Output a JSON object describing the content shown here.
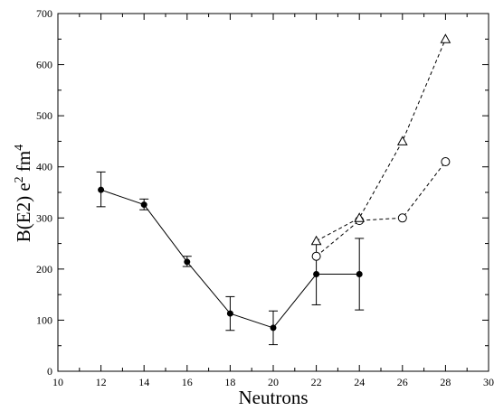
{
  "chart_data": {
    "type": "line",
    "xlabel": "Neutrons",
    "ylabel": {
      "main": "B(E2) e",
      "sup1": "2",
      "mid": "fm",
      "sup2": "4"
    },
    "xlim": [
      10,
      30
    ],
    "ylim": [
      0,
      700
    ],
    "xticks": [
      10,
      12,
      14,
      16,
      18,
      20,
      22,
      24,
      26,
      28,
      30
    ],
    "yticks": [
      0,
      100,
      200,
      300,
      400,
      500,
      600,
      700
    ],
    "grid": false,
    "series": [
      {
        "marker": "filled-circle",
        "line": "solid",
        "points": [
          {
            "x": 12,
            "y": 355,
            "err_low": 322,
            "err_high": 390
          },
          {
            "x": 14,
            "y": 326,
            "err_low": 316,
            "err_high": 337
          },
          {
            "x": 16,
            "y": 214,
            "err_low": 205,
            "err_high": 225
          },
          {
            "x": 18,
            "y": 113,
            "err_low": 80,
            "err_high": 146
          },
          {
            "x": 20,
            "y": 85,
            "err_low": 52,
            "err_high": 118
          },
          {
            "x": 22,
            "y": 190,
            "err_low": 130,
            "err_high": 250
          },
          {
            "x": 24,
            "y": 190,
            "err_low": 120,
            "err_high": 260
          }
        ]
      },
      {
        "marker": "open-circle",
        "line": "dashed",
        "points": [
          {
            "x": 22,
            "y": 225
          },
          {
            "x": 24,
            "y": 295
          },
          {
            "x": 26,
            "y": 300
          },
          {
            "x": 28,
            "y": 410
          }
        ]
      },
      {
        "marker": "open-triangle",
        "line": "dashed",
        "points": [
          {
            "x": 22,
            "y": 255
          },
          {
            "x": 24,
            "y": 300
          },
          {
            "x": 26,
            "y": 450
          },
          {
            "x": 28,
            "y": 650
          }
        ]
      }
    ]
  }
}
